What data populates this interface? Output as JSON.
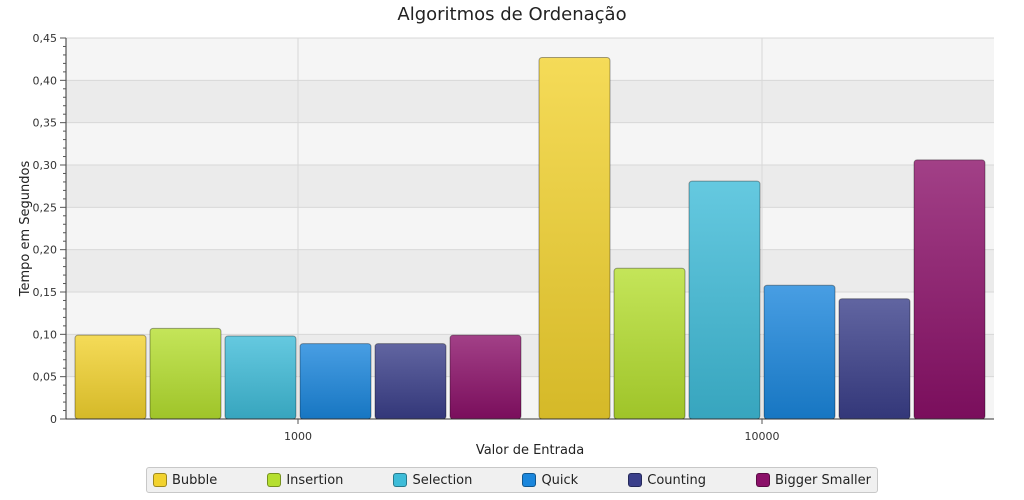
{
  "chart_data": {
    "type": "bar",
    "title": "Algoritmos de Ordenação",
    "xlabel": "Valor de Entrada",
    "ylabel": "Tempo em Segundos",
    "categories": [
      "1000",
      "10000"
    ],
    "ylim": [
      0,
      0.45
    ],
    "yticks": [
      "0",
      "0,05",
      "0,10",
      "0,15",
      "0,20",
      "0,25",
      "0,30",
      "0,35",
      "0,40",
      "0,45"
    ],
    "grid": true,
    "legend_position": "bottom",
    "series": [
      {
        "name": "Bubble",
        "values": [
          0.099,
          0.427
        ],
        "color": "#f2d22e"
      },
      {
        "name": "Insertion",
        "values": [
          0.107,
          0.178
        ],
        "color": "#b5df2f"
      },
      {
        "name": "Selection",
        "values": [
          0.098,
          0.281
        ],
        "color": "#3ebcd8"
      },
      {
        "name": "Quick",
        "values": [
          0.089,
          0.158
        ],
        "color": "#1a86dc"
      },
      {
        "name": "Counting",
        "values": [
          0.089,
          0.142
        ],
        "color": "#3a3f8a"
      },
      {
        "name": "Bigger Smaller",
        "values": [
          0.099,
          0.306
        ],
        "color": "#8b1069"
      }
    ]
  }
}
